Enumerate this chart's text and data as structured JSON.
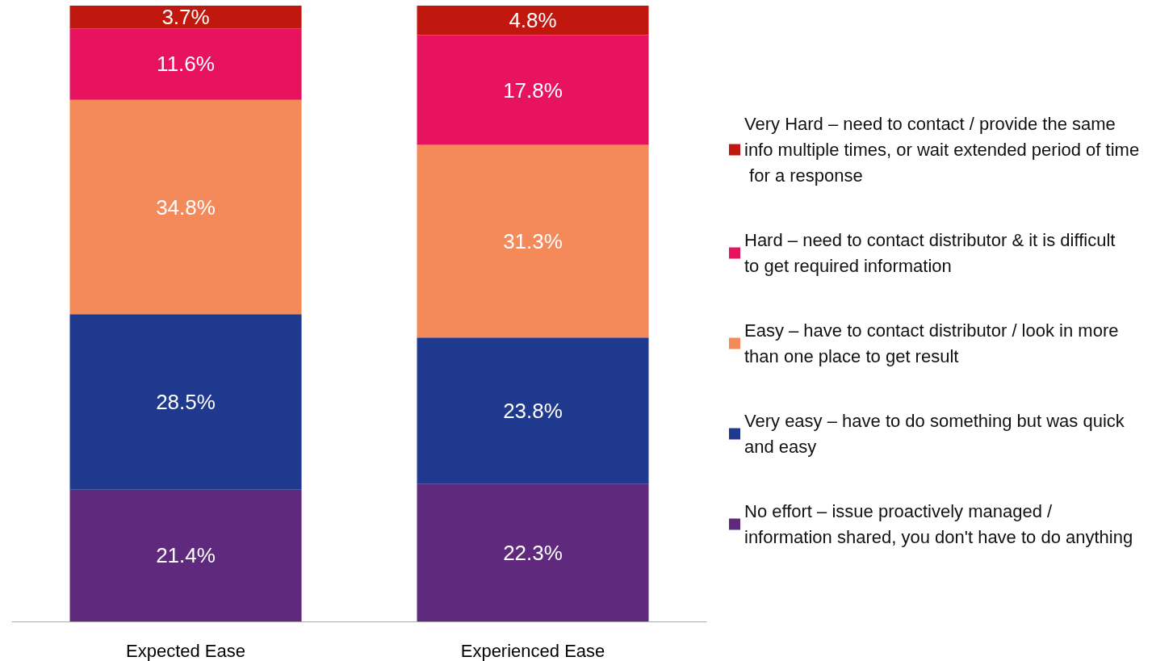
{
  "chart_data": {
    "type": "bar",
    "stacked": true,
    "categories": [
      "Expected Ease",
      "Experienced Ease"
    ],
    "ylim": [
      0,
      100
    ],
    "tick_labels": "x",
    "grid": false,
    "legend": "right",
    "series": [
      {
        "name": "No effort – issue proactively managed / information shared, you don't have to do anything",
        "color": "#5f2a7d",
        "values": [
          21.4,
          22.3
        ],
        "value_labels": [
          "21.4%",
          "22.3%"
        ]
      },
      {
        "name": "Very easy – have to do something but was quick and easy",
        "color": "#1f398f",
        "values": [
          28.5,
          23.8
        ],
        "value_labels": [
          "28.5%",
          "23.8%"
        ]
      },
      {
        "name": "Easy – have to contact distributor / look in more than one place to get result",
        "color": "#f4895a",
        "values": [
          34.8,
          31.3
        ],
        "value_labels": [
          "34.8%",
          "31.3%"
        ]
      },
      {
        "name": "Hard – need to contact distributor & it is difficult to get required information",
        "color": "#e8135f",
        "values": [
          11.6,
          17.8
        ],
        "value_labels": [
          "11.6%",
          "17.8%"
        ]
      },
      {
        "name": "Very Hard – need to contact / provide the same info multiple times, or wait extended period of time for a response",
        "color": "#c0170f",
        "values": [
          3.7,
          4.8
        ],
        "value_labels": [
          "3.7%",
          "4.8%"
        ]
      }
    ]
  }
}
